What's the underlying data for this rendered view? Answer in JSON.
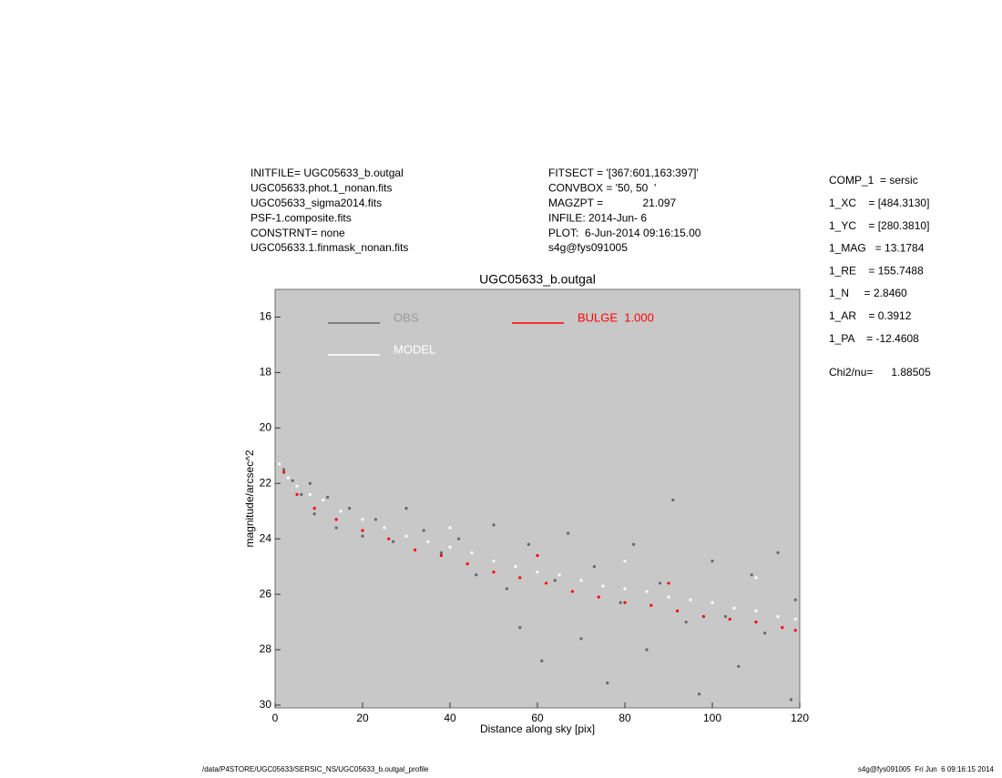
{
  "header": {
    "left": [
      "INITFILE= UGC05633_b.outgal",
      "UGC05633.phot.1_nonan.fits",
      "UGC05633_sigma2014.fits",
      "PSF-1.composite.fits",
      "CONSTRNT= none",
      "UGC05633.1.finmask_nonan.fits"
    ],
    "middle": [
      "FITSECT = '[367:601,163:397]'",
      "CONVBOX = '50, 50  '",
      "MAGZPT =             21.097",
      "INFILE: 2014-Jun- 6",
      "PLOT:  6-Jun-2014 09:16:15.00",
      "s4g@fys091005"
    ],
    "right": [
      "COMP_1  = sersic",
      "1_XC    = [484.3130]",
      "1_YC    = [280.3810]",
      "1_MAG   = 13.1784",
      "1_RE    = 155.7488",
      "1_N     = 2.8460",
      "1_AR    = 0.3912",
      "1_PA    = -12.4608"
    ],
    "chi2": "Chi2/nu=      1.88505"
  },
  "footer": {
    "left": "/data/P4STORE/UGC05633/SERSIC_NS/UGC05633_b.outgal_profile",
    "right": "s4g@fys091005  Fri Jun  6 09:16:15 2014"
  },
  "chart_data": {
    "type": "scatter",
    "title": "UGC05633_b.outgal",
    "x_label": "Distance along sky [pix]",
    "y_label": "magnitude/arcsec^2",
    "xlim": [
      0,
      120
    ],
    "xticks": [
      0,
      20,
      40,
      60,
      80,
      100,
      120
    ],
    "ylim": [
      15,
      30.1
    ],
    "yticks": [
      16,
      18,
      20,
      22,
      24,
      26,
      28,
      30
    ],
    "y_inverted": true,
    "background": "#c8c8c8",
    "series": [
      {
        "name": "OBS",
        "color": "#666666",
        "x": [
          2,
          4,
          6,
          8,
          9,
          12,
          14,
          17,
          20,
          23,
          27,
          30,
          34,
          38,
          42,
          46,
          50,
          53,
          56,
          58,
          61,
          64,
          67,
          70,
          73,
          76,
          79,
          82,
          85,
          88,
          91,
          94,
          97,
          100,
          103,
          106,
          109,
          112,
          115,
          118,
          119
        ],
        "values": [
          21.5,
          21.9,
          22.4,
          22.0,
          23.1,
          22.5,
          23.6,
          22.9,
          23.9,
          23.3,
          24.1,
          22.9,
          23.7,
          24.5,
          24.0,
          25.3,
          23.5,
          25.8,
          27.2,
          24.2,
          28.4,
          25.5,
          23.8,
          27.6,
          25.0,
          29.2,
          26.3,
          24.2,
          28.0,
          25.6,
          22.6,
          27.0,
          29.6,
          24.8,
          26.8,
          28.6,
          25.3,
          27.4,
          24.5,
          29.8,
          26.2
        ]
      },
      {
        "name": "MODEL",
        "color": "#ffffff",
        "x": [
          1,
          3,
          5,
          8,
          11,
          15,
          20,
          25,
          30,
          35,
          40,
          40,
          45,
          50,
          55,
          60,
          65,
          70,
          75,
          80,
          80,
          85,
          90,
          95,
          100,
          105,
          110,
          110,
          115,
          119
        ],
        "values": [
          21.3,
          21.8,
          22.1,
          22.4,
          22.6,
          23.0,
          23.3,
          23.6,
          23.9,
          24.1,
          24.3,
          23.6,
          24.5,
          24.8,
          25.0,
          25.2,
          25.3,
          25.5,
          25.7,
          25.8,
          24.8,
          25.9,
          26.1,
          26.2,
          26.3,
          26.5,
          26.6,
          25.4,
          26.8,
          26.9
        ]
      },
      {
        "name": "BULGE  1.000",
        "color": "#ff0000",
        "x": [
          2,
          5,
          9,
          14,
          20,
          26,
          32,
          38,
          44,
          50,
          56,
          60,
          62,
          68,
          74,
          80,
          86,
          90,
          92,
          98,
          104,
          110,
          116,
          119
        ],
        "values": [
          21.6,
          22.4,
          22.9,
          23.3,
          23.7,
          24.0,
          24.4,
          24.6,
          24.9,
          25.2,
          25.4,
          24.6,
          25.6,
          25.9,
          26.1,
          26.3,
          26.4,
          25.6,
          26.6,
          26.8,
          26.9,
          27.0,
          27.2,
          27.3
        ]
      }
    ]
  }
}
